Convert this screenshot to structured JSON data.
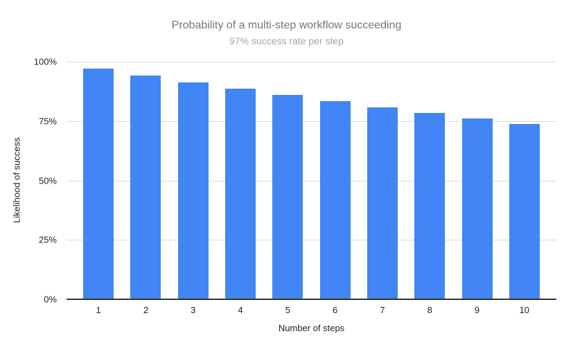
{
  "chart_data": {
    "type": "bar",
    "title": "Probability of a multi-step workflow succeeding",
    "subtitle": "97% success rate per step",
    "xlabel": "Number of steps",
    "ylabel": "Likelihood of success",
    "categories": [
      "1",
      "2",
      "3",
      "4",
      "5",
      "6",
      "7",
      "8",
      "9",
      "10"
    ],
    "values": [
      97,
      94.09,
      91.27,
      88.53,
      85.87,
      83.3,
      80.8,
      78.37,
      76.02,
      73.74
    ],
    "ylim": [
      0,
      100
    ],
    "yticks": [
      {
        "value": 0,
        "label": "0%"
      },
      {
        "value": 25,
        "label": "25%"
      },
      {
        "value": 50,
        "label": "50%"
      },
      {
        "value": 75,
        "label": "75%"
      },
      {
        "value": 100,
        "label": "100%"
      }
    ],
    "grid": true,
    "legend": "none",
    "colors": {
      "bar": "#4285f4",
      "title": "#757575",
      "subtitle": "#a4a4a4",
      "gridline": "#d9d9d9",
      "axis_line": "#333333",
      "tick_label": "#212121"
    }
  }
}
